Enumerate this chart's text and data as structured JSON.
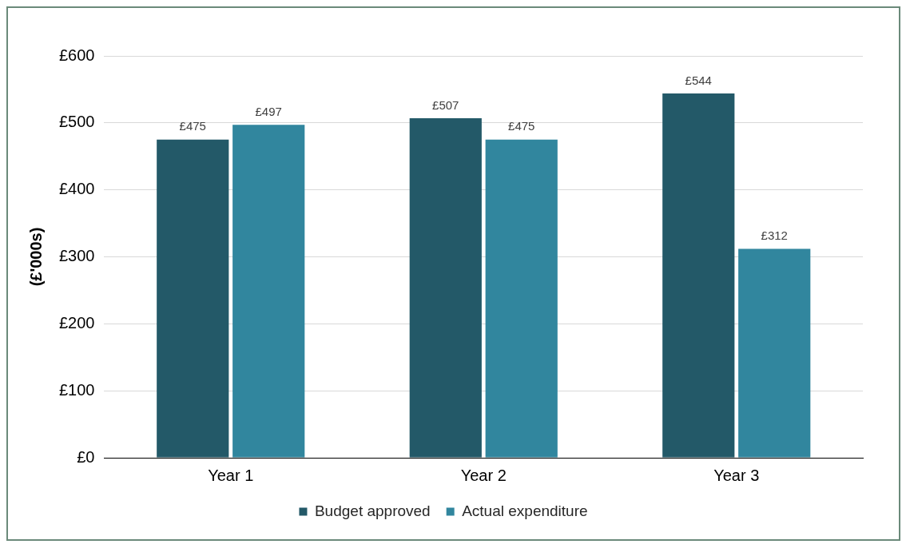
{
  "chart_data": {
    "type": "bar",
    "ylabel": "(£'000s)",
    "categories": [
      "Year 1",
      "Year 2",
      "Year 3"
    ],
    "series": [
      {
        "name": "Budget approved",
        "color": "#235968",
        "values": [
          475,
          507,
          544
        ],
        "value_labels": [
          "£475",
          "£507",
          "£544"
        ]
      },
      {
        "name": "Actual expenditure",
        "color": "#31869e",
        "values": [
          497,
          475,
          312
        ],
        "value_labels": [
          "£497",
          "£475",
          "£312"
        ]
      }
    ],
    "ylim": [
      0,
      600
    ],
    "yticks": [
      {
        "value": 0,
        "label": "£0"
      },
      {
        "value": 100,
        "label": "£100"
      },
      {
        "value": 200,
        "label": "£200"
      },
      {
        "value": 300,
        "label": "£300"
      },
      {
        "value": 400,
        "label": "£400"
      },
      {
        "value": 500,
        "label": "£500"
      },
      {
        "value": 600,
        "label": "£600"
      }
    ],
    "grid": "y",
    "legend": "bottom"
  }
}
